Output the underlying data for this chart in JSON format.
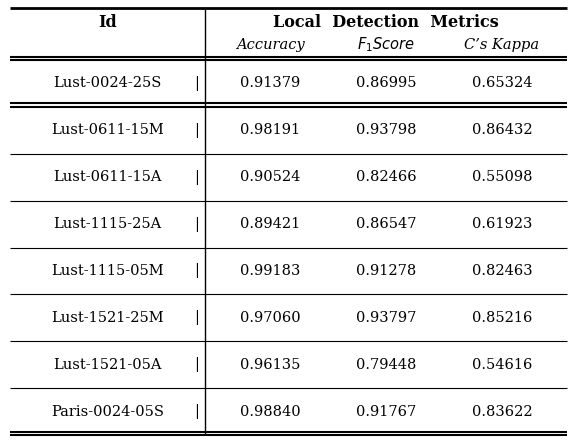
{
  "title_main": "Local  Detection  Metrics",
  "col_header_id": "Id",
  "col_headers_italic": [
    "Accuracy",
    "F_1Score",
    "C’s Kappa"
  ],
  "rows": [
    [
      "Lust-0024-25S",
      "0.91379",
      "0.86995",
      "0.65324"
    ],
    [
      "Lust-0611-15M",
      "0.98191",
      "0.93798",
      "0.86432"
    ],
    [
      "Lust-0611-15A",
      "0.90524",
      "0.82466",
      "0.55098"
    ],
    [
      "Lust-1115-25A",
      "0.89421",
      "0.86547",
      "0.61923"
    ],
    [
      "Lust-1115-05M",
      "0.99183",
      "0.91278",
      "0.82463"
    ],
    [
      "Lust-1521-25M",
      "0.97060",
      "0.93797",
      "0.85216"
    ],
    [
      "Lust-1521-05A",
      "0.96135",
      "0.79448",
      "0.54616"
    ],
    [
      "Paris-0024-05S",
      "0.98840",
      "0.91767",
      "0.83622"
    ]
  ],
  "bg_color": "#ffffff",
  "text_color": "#000000",
  "font_size": 10.5,
  "title_font_size": 11.5,
  "header_font_size": 11.5,
  "fig_width": 5.77,
  "fig_height": 4.43,
  "dpi": 100
}
